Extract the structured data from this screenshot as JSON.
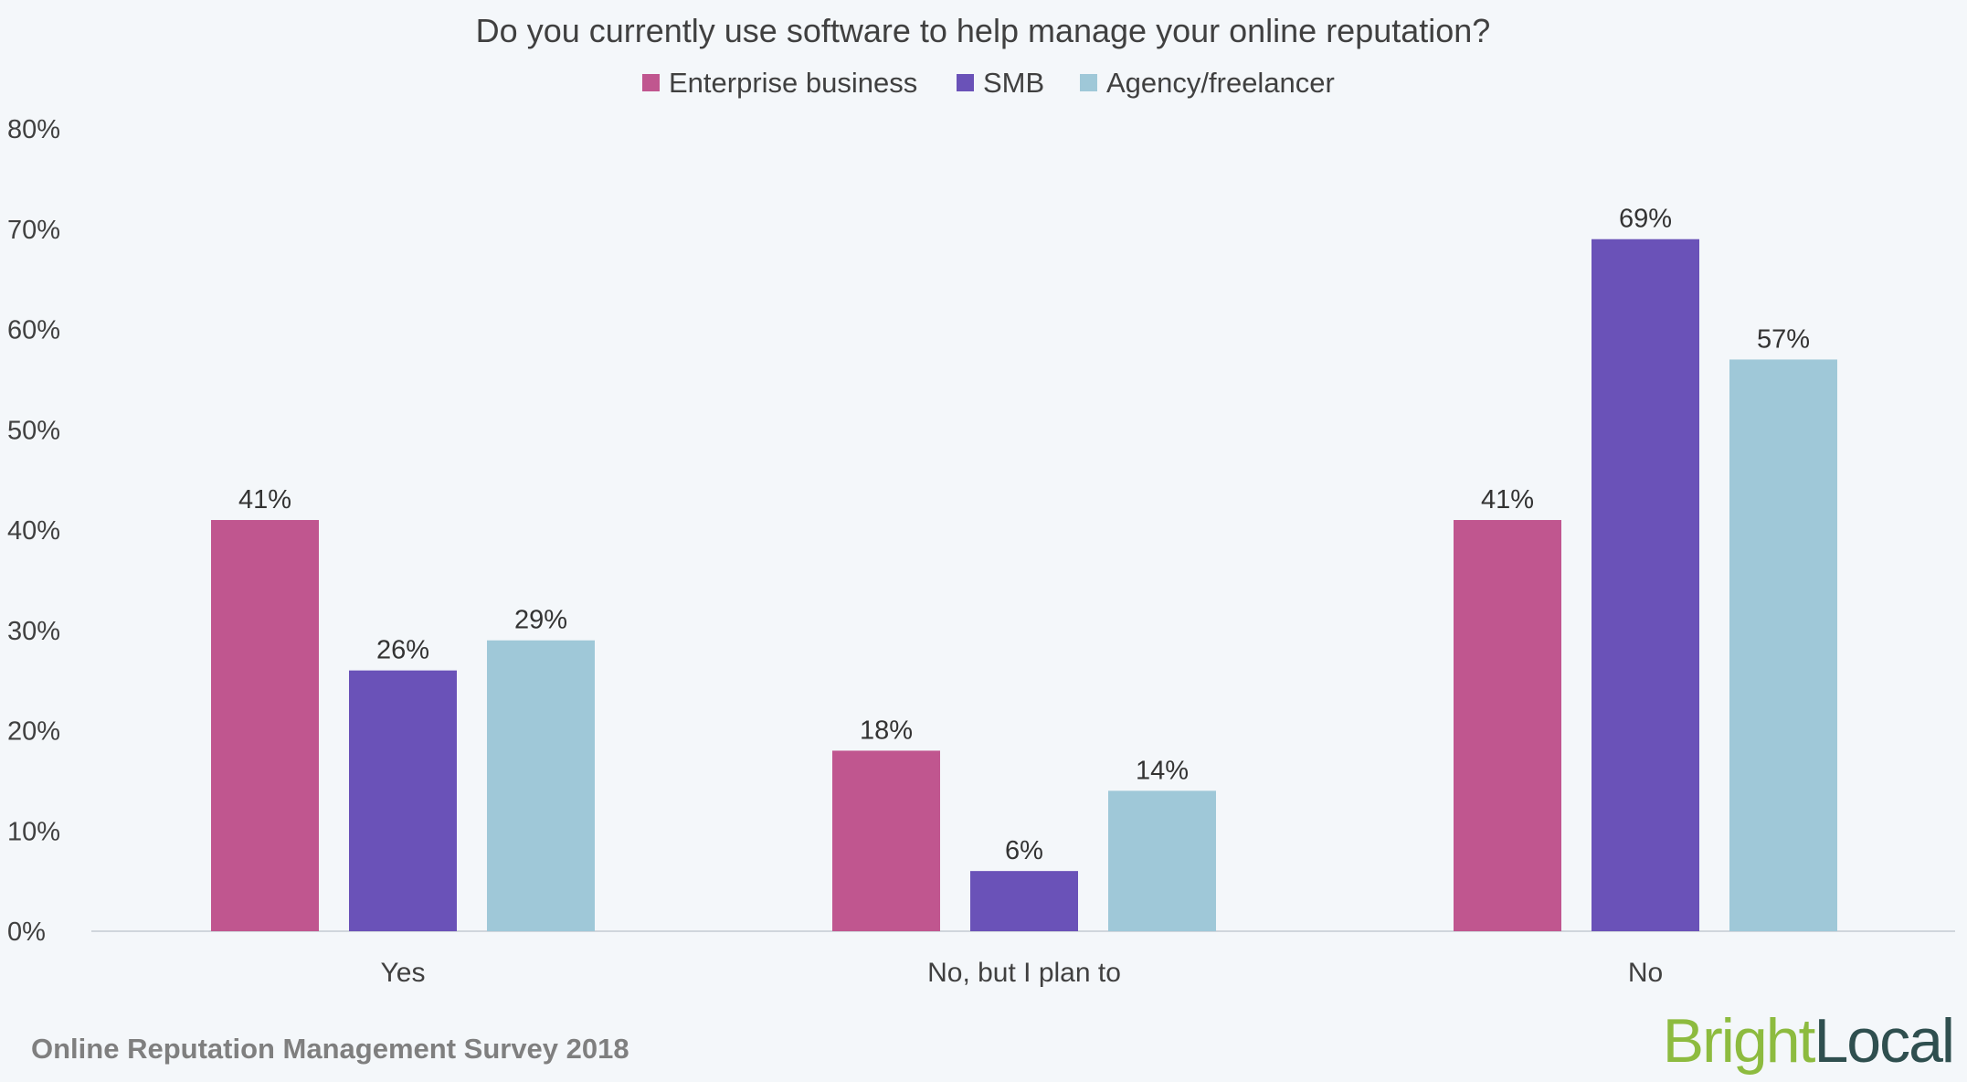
{
  "chart_data": {
    "type": "bar",
    "title": "Do you currently use software to help manage your online reputation?",
    "categories": [
      "Yes",
      "No, but I plan to",
      "No"
    ],
    "series": [
      {
        "name": "Enterprise business",
        "color": "#c0568f",
        "values": [
          41,
          18,
          41
        ],
        "labels": [
          "41%",
          "18%",
          "41%"
        ]
      },
      {
        "name": "SMB",
        "color": "#6a52b8",
        "values": [
          26,
          6,
          69
        ],
        "labels": [
          "26%",
          "6%",
          "69%"
        ]
      },
      {
        "name": "Agency/freelancer",
        "color": "#9fc8d8",
        "values": [
          29,
          14,
          57
        ],
        "labels": [
          "29%",
          "14%",
          "57%"
        ]
      }
    ],
    "yticks": [
      "0%",
      "10%",
      "20%",
      "30%",
      "40%",
      "50%",
      "60%",
      "70%",
      "80%"
    ],
    "ylim": [
      0,
      80
    ],
    "xlabel": "",
    "ylabel": "",
    "legend_position": "top",
    "grid": false
  },
  "footer": {
    "source": "Online Reputation Management Survey 2018",
    "brand_part1": "Bright",
    "brand_part2": "Local"
  }
}
